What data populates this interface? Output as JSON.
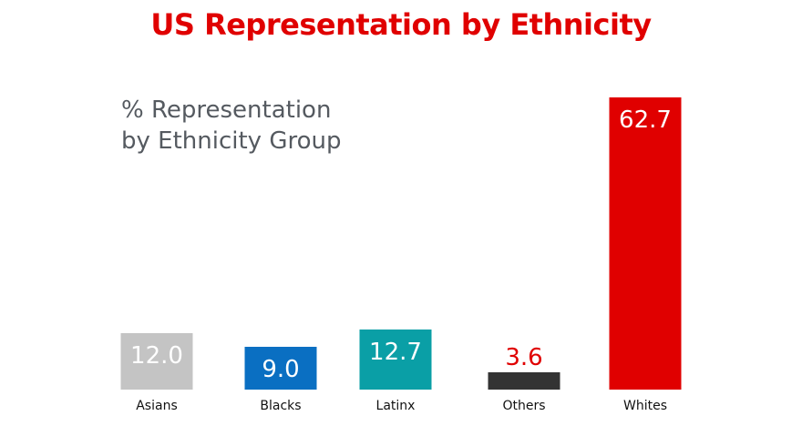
{
  "chart_data": {
    "type": "bar",
    "title": "US Representation by Ethnicity",
    "subtitle_lines": [
      "% Representation",
      "by Ethnicity Group"
    ],
    "categories": [
      "Asians",
      "Blacks",
      "Latinx",
      "Others",
      "Whites"
    ],
    "values": [
      12.0,
      9.0,
      12.7,
      3.6,
      62.7
    ],
    "value_labels": [
      "12.0",
      "9.0",
      "12.7",
      "3.6",
      "62.7"
    ],
    "colors": [
      "#c4c4c4",
      "#0a6fc2",
      "#0a9fa6",
      "#333333",
      "#e00000"
    ],
    "label_colors": [
      "#ffffff",
      "#ffffff",
      "#ffffff",
      "#e00000",
      "#ffffff"
    ],
    "ylim": [
      0,
      62.7
    ],
    "grid": false,
    "legend": "none",
    "xlabel": "",
    "ylabel": ""
  }
}
